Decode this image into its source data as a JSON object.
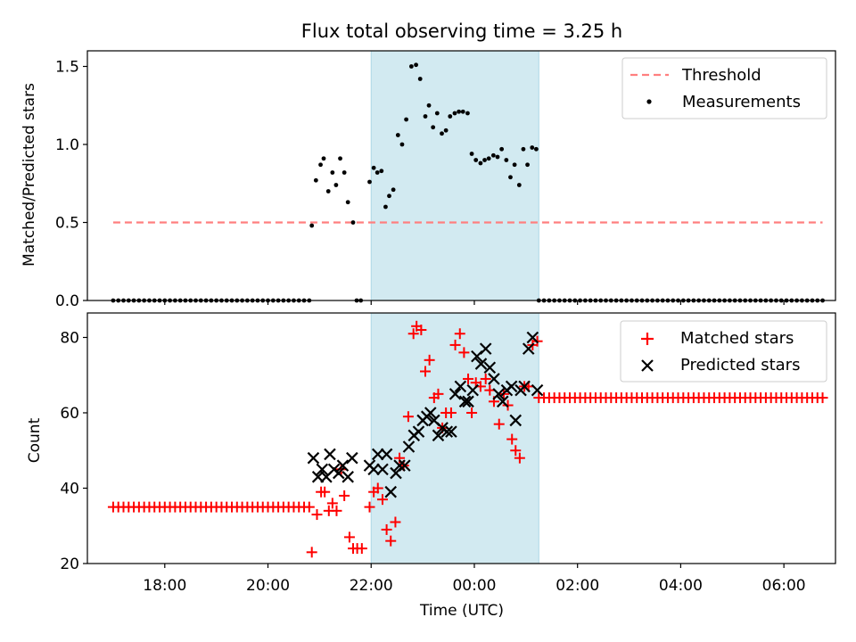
{
  "figure": {
    "title": "Flux total observing time = 3.25 h"
  },
  "chart_data": [
    {
      "type": "scatter",
      "panel": "top",
      "title": "Flux total observing time = 3.25 h",
      "xlabel": "",
      "ylabel": "Matched/Predicted stars",
      "xlim": [
        16.5,
        31.0
      ],
      "ylim": [
        0.0,
        1.6
      ],
      "yticks": [
        0.0,
        0.5,
        1.0,
        1.5
      ],
      "ytick_labels": [
        "0.0",
        "0.5",
        "1.0",
        "1.5"
      ],
      "shaded_interval": [
        22.0,
        25.25
      ],
      "shade_color": "#add8e6",
      "legend": {
        "position": "upper right",
        "entries": [
          "Threshold",
          "Measurements"
        ]
      },
      "threshold": {
        "name": "Threshold",
        "value": 0.5,
        "x": [
          17.0,
          30.75
        ],
        "color": "#ff0000",
        "style": "dashed"
      },
      "measurements": {
        "name": "Measurements",
        "color": "#000000",
        "x_left_zero": [
          17.0,
          20.85
        ],
        "x_right_zero": [
          25.25,
          30.75
        ],
        "zero_spacing": 0.1,
        "points": [
          [
            20.85,
            0.48
          ],
          [
            20.93,
            0.77
          ],
          [
            21.02,
            0.87
          ],
          [
            21.08,
            0.91
          ],
          [
            21.17,
            0.7
          ],
          [
            21.25,
            0.82
          ],
          [
            21.32,
            0.74
          ],
          [
            21.4,
            0.91
          ],
          [
            21.48,
            0.82
          ],
          [
            21.55,
            0.63
          ],
          [
            21.65,
            0.5
          ],
          [
            21.72,
            0.0
          ],
          [
            21.8,
            0.0
          ],
          [
            21.97,
            0.76
          ],
          [
            22.05,
            0.85
          ],
          [
            22.12,
            0.82
          ],
          [
            22.2,
            0.83
          ],
          [
            22.28,
            0.6
          ],
          [
            22.35,
            0.67
          ],
          [
            22.43,
            0.71
          ],
          [
            22.52,
            1.06
          ],
          [
            22.6,
            1.0
          ],
          [
            22.68,
            1.16
          ],
          [
            22.78,
            1.5
          ],
          [
            22.87,
            1.51
          ],
          [
            22.95,
            1.42
          ],
          [
            23.05,
            1.18
          ],
          [
            23.12,
            1.25
          ],
          [
            23.2,
            1.11
          ],
          [
            23.28,
            1.2
          ],
          [
            23.37,
            1.07
          ],
          [
            23.45,
            1.09
          ],
          [
            23.53,
            1.18
          ],
          [
            23.62,
            1.2
          ],
          [
            23.7,
            1.21
          ],
          [
            23.78,
            1.21
          ],
          [
            23.87,
            1.2
          ],
          [
            23.95,
            0.94
          ],
          [
            24.03,
            0.9
          ],
          [
            24.12,
            0.88
          ],
          [
            24.2,
            0.9
          ],
          [
            24.28,
            0.91
          ],
          [
            24.37,
            0.93
          ],
          [
            24.45,
            0.92
          ],
          [
            24.53,
            0.97
          ],
          [
            24.62,
            0.9
          ],
          [
            24.7,
            0.79
          ],
          [
            24.78,
            0.87
          ],
          [
            24.87,
            0.74
          ],
          [
            24.95,
            0.97
          ],
          [
            25.03,
            0.87
          ],
          [
            25.12,
            0.98
          ],
          [
            25.2,
            0.97
          ]
        ]
      }
    },
    {
      "type": "scatter",
      "panel": "bottom",
      "xlabel": "Time (UTC)",
      "ylabel": "Count",
      "xlim": [
        16.5,
        31.0
      ],
      "ylim": [
        20,
        86.5
      ],
      "yticks": [
        20,
        40,
        60,
        80
      ],
      "ytick_labels": [
        "20",
        "40",
        "60",
        "80"
      ],
      "xticks": [
        18,
        20,
        22,
        24,
        26,
        28,
        30
      ],
      "xtick_labels": [
        "18:00",
        "20:00",
        "22:00",
        "00:00",
        "02:00",
        "04:00",
        "06:00"
      ],
      "shaded_interval": [
        22.0,
        25.25
      ],
      "shade_color": "#add8e6",
      "legend": {
        "position": "upper right",
        "entries": [
          "Matched stars",
          "Predicted stars"
        ]
      },
      "series": [
        {
          "name": "Matched stars",
          "marker": "+",
          "color": "#ff0000",
          "constant_left": {
            "x": [
              17.0,
              20.85
            ],
            "value": 35
          },
          "constant_right": {
            "x": [
              25.25,
              30.75
            ],
            "value": 64
          },
          "points": [
            [
              20.85,
              23
            ],
            [
              20.95,
              33
            ],
            [
              21.03,
              39
            ],
            [
              21.1,
              39
            ],
            [
              21.18,
              34
            ],
            [
              21.25,
              36
            ],
            [
              21.33,
              34
            ],
            [
              21.42,
              45
            ],
            [
              21.48,
              38
            ],
            [
              21.58,
              27
            ],
            [
              21.65,
              24
            ],
            [
              21.73,
              24
            ],
            [
              21.82,
              24
            ],
            [
              21.97,
              35
            ],
            [
              22.05,
              39
            ],
            [
              22.13,
              40
            ],
            [
              22.22,
              37
            ],
            [
              22.3,
              29
            ],
            [
              22.38,
              26
            ],
            [
              22.47,
              31
            ],
            [
              22.55,
              48
            ],
            [
              22.63,
              46
            ],
            [
              22.72,
              59
            ],
            [
              22.82,
              81
            ],
            [
              22.88,
              83
            ],
            [
              22.97,
              82
            ],
            [
              23.05,
              71
            ],
            [
              23.13,
              74
            ],
            [
              23.22,
              64
            ],
            [
              23.3,
              65
            ],
            [
              23.38,
              56
            ],
            [
              23.45,
              60
            ],
            [
              23.55,
              60
            ],
            [
              23.63,
              78
            ],
            [
              23.72,
              81
            ],
            [
              23.8,
              76
            ],
            [
              23.88,
              69
            ],
            [
              23.95,
              60
            ],
            [
              24.03,
              68
            ],
            [
              24.12,
              67
            ],
            [
              24.22,
              69
            ],
            [
              24.3,
              66
            ],
            [
              24.38,
              63
            ],
            [
              24.48,
              57
            ],
            [
              24.57,
              65
            ],
            [
              24.65,
              62
            ],
            [
              24.73,
              53
            ],
            [
              24.8,
              50
            ],
            [
              24.88,
              48
            ],
            [
              24.97,
              67
            ],
            [
              25.05,
              67
            ],
            [
              25.13,
              78
            ],
            [
              25.22,
              79
            ]
          ]
        },
        {
          "name": "Predicted stars",
          "marker": "x",
          "color": "#000000",
          "points": [
            [
              20.88,
              48
            ],
            [
              20.97,
              43
            ],
            [
              21.05,
              45
            ],
            [
              21.13,
              43
            ],
            [
              21.2,
              49
            ],
            [
              21.28,
              45
            ],
            [
              21.37,
              44
            ],
            [
              21.45,
              46
            ],
            [
              21.55,
              43
            ],
            [
              21.63,
              48
            ],
            [
              21.97,
              46
            ],
            [
              22.05,
              45
            ],
            [
              22.13,
              49
            ],
            [
              22.22,
              45
            ],
            [
              22.3,
              49
            ],
            [
              22.38,
              39
            ],
            [
              22.48,
              44
            ],
            [
              22.55,
              46
            ],
            [
              22.65,
              46
            ],
            [
              22.73,
              51
            ],
            [
              22.83,
              54
            ],
            [
              22.92,
              55
            ],
            [
              23.0,
              58
            ],
            [
              23.08,
              59
            ],
            [
              23.15,
              60
            ],
            [
              23.22,
              58
            ],
            [
              23.3,
              54
            ],
            [
              23.38,
              56
            ],
            [
              23.47,
              55
            ],
            [
              23.55,
              55
            ],
            [
              23.63,
              65
            ],
            [
              23.73,
              67
            ],
            [
              23.82,
              63
            ],
            [
              23.88,
              63
            ],
            [
              23.97,
              66
            ],
            [
              24.05,
              75
            ],
            [
              24.13,
              73
            ],
            [
              24.22,
              77
            ],
            [
              24.3,
              72
            ],
            [
              24.38,
              69
            ],
            [
              24.47,
              65
            ],
            [
              24.55,
              63
            ],
            [
              24.63,
              66
            ],
            [
              24.72,
              67
            ],
            [
              24.8,
              58
            ],
            [
              24.9,
              66
            ],
            [
              24.97,
              67
            ],
            [
              25.05,
              77
            ],
            [
              25.13,
              80
            ],
            [
              25.22,
              66
            ]
          ]
        }
      ]
    }
  ]
}
